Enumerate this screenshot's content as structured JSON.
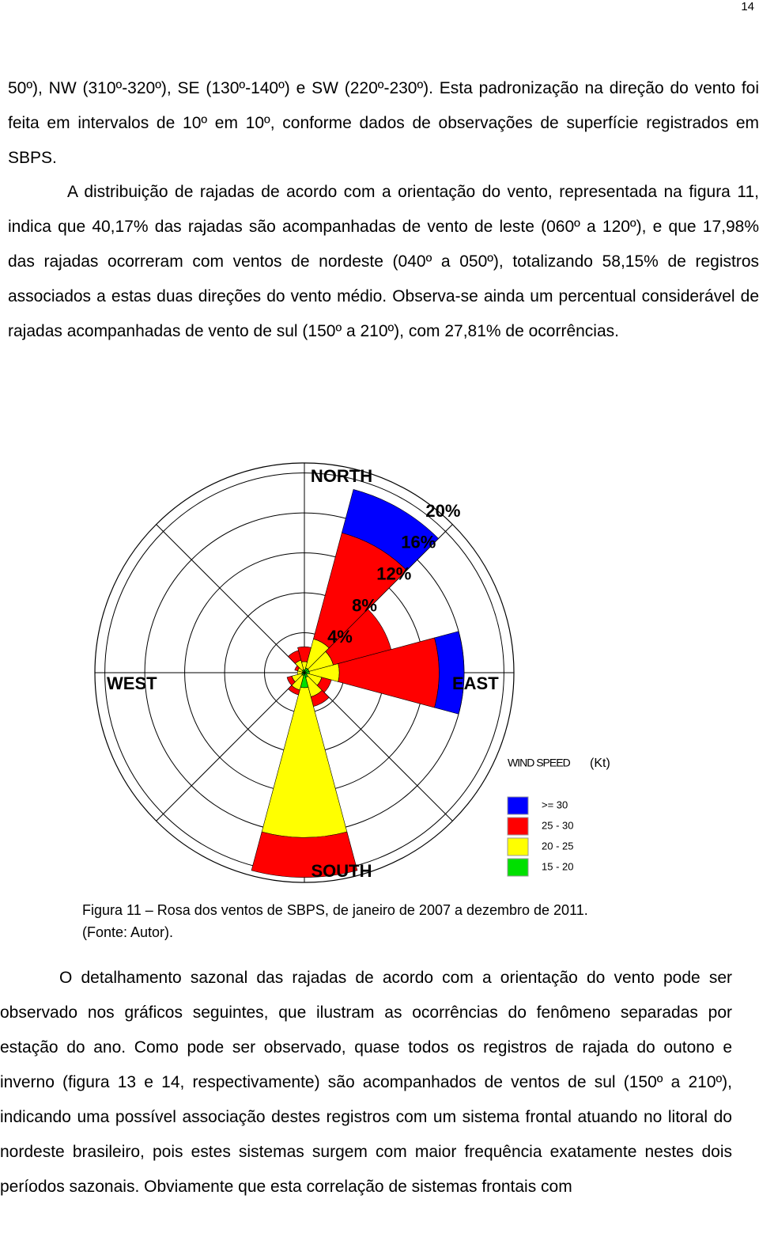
{
  "document": {
    "page_number": "14",
    "paragraph_1": "50º), NW (310º-320º), SE (130º-140º) e SW (220º-230º). Esta padronização na direção do vento foi feita em intervalos de 10º em 10º, conforme dados de observações de superfície registrados em SBPS.",
    "paragraph_2": "A distribuição de rajadas de acordo com a orientação do vento, representada na figura 11, indica que 40,17% das rajadas são acompanhadas de vento de leste (060º a 120º), e que 17,98% das rajadas ocorreram com ventos de nordeste (040º a 050º), totalizando 58,15% de registros associados a estas duas direções do vento médio. Observa-se ainda um percentual considerável de rajadas acompanhadas de vento de sul (150º a 210º), com 27,81% de ocorrências.",
    "caption": "Figura 11 – Rosa dos ventos de SBPS, de janeiro de 2007 a dezembro de 2011.(Fonte: Autor).",
    "paragraph_3": "O detalhamento sazonal das rajadas de acordo com a orientação do vento pode ser observado nos gráficos seguintes, que ilustram as ocorrências do fenômeno separadas por estação do ano. Como pode ser observado, quase todos os registros de rajada do outono e inverno (figura 13 e 14, respectivamente) são acompanhados de ventos de sul (150º a 210º), indicando uma possível associação destes registros com um sistema frontal atuando no litoral do nordeste brasileiro, pois estes sistemas surgem com maior frequência exatamente nestes dois períodos sazonais. Obviamente que esta correlação de sistemas frontais com"
  },
  "chart_data": {
    "type": "windrose",
    "compass": {
      "north": "NORTH",
      "east": "EAST",
      "south": "SOUTH",
      "west": "WEST"
    },
    "legend_title": "WIND SPEED",
    "legend_unit": "(Kt)",
    "directions": [
      0,
      30,
      60,
      90,
      120,
      150,
      180,
      210,
      240,
      270,
      300,
      330
    ],
    "rlim": [
      0,
      21
    ],
    "rticks": [
      {
        "value": 4,
        "label": "4%"
      },
      {
        "value": 8,
        "label": "8%"
      },
      {
        "value": 12,
        "label": "12%"
      },
      {
        "value": 16,
        "label": "16%"
      },
      {
        "value": 20,
        "label": "20%"
      }
    ],
    "series": [
      {
        "name": "15 - 20",
        "color": "#00e000",
        "values": [
          0.3,
          0.5,
          0.5,
          0.5,
          0.3,
          0.5,
          1.5,
          0.3,
          0.3,
          0.2,
          0.2,
          0.3
        ]
      },
      {
        "name": "20 - 25",
        "color": "#ffff00",
        "values": [
          0.8,
          3,
          2.5,
          3,
          1.5,
          2,
          15,
          1.5,
          1,
          0.5,
          0.5,
          1
        ]
      },
      {
        "name": "25 - 30",
        "color": "#ff0000",
        "values": [
          1.5,
          11,
          6,
          10,
          1,
          1,
          4,
          0.5,
          0.5,
          0,
          0.3,
          1
        ]
      },
      {
        "name": ">= 30",
        "color": "#0000ff",
        "values": [
          0,
          4.5,
          0,
          2.5,
          0,
          0,
          0,
          0,
          0,
          0,
          0,
          0
        ]
      }
    ]
  }
}
